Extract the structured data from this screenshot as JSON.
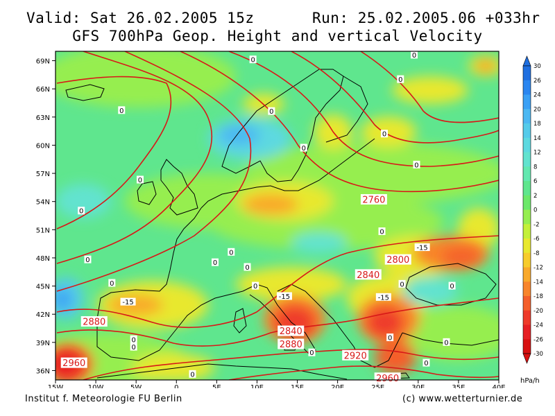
{
  "header": {
    "valid": "Valid: Sat 26.02.2005 15z",
    "run": "Run: 25.02.2005.06 +033hr",
    "title": "GFS 700hPa Geop. Height and vertical Velocity"
  },
  "footer": {
    "left": "Institut f. Meteorologie  FU Berlin",
    "right": "(c) www.wetterturnier.de"
  },
  "map": {
    "lat_labels": [
      "69N",
      "66N",
      "63N",
      "60N",
      "57N",
      "54N",
      "51N",
      "48N",
      "45N",
      "42N",
      "39N",
      "36N"
    ],
    "lon_labels": [
      "15W",
      "10W",
      "5W",
      "0",
      "5E",
      "10E",
      "15E",
      "20E",
      "25E",
      "30E",
      "35E",
      "40E"
    ],
    "lat_range": [
      35,
      70
    ],
    "lon_range": [
      -15,
      40
    ],
    "height_contour_labels": [
      {
        "text": "2760",
        "lon": 24.5,
        "lat": 54.2
      },
      {
        "text": "2800",
        "lon": 27.5,
        "lat": 47.8
      },
      {
        "text": "2840",
        "lon": 23.8,
        "lat": 46.2
      },
      {
        "text": "2880",
        "lon": -10.2,
        "lat": 41.2
      },
      {
        "text": "2840",
        "lon": 14.2,
        "lat": 40.2
      },
      {
        "text": "2880",
        "lon": 14.2,
        "lat": 38.8
      },
      {
        "text": "2920",
        "lon": 22.2,
        "lat": 37.6
      },
      {
        "text": "2960",
        "lon": -12.7,
        "lat": 36.8
      },
      {
        "text": "2960",
        "lon": 26.2,
        "lat": 35.2
      }
    ],
    "omega_labels": [
      {
        "text": "0",
        "lon": 9.5,
        "lat": 69.1
      },
      {
        "text": "0",
        "lon": 29.5,
        "lat": 69.6
      },
      {
        "text": "0",
        "lon": 27.8,
        "lat": 67.0
      },
      {
        "text": "0",
        "lon": 11.8,
        "lat": 63.6
      },
      {
        "text": "0",
        "lon": -6.8,
        "lat": 63.7
      },
      {
        "text": "0",
        "lon": 25.8,
        "lat": 61.2
      },
      {
        "text": "0",
        "lon": 15.8,
        "lat": 59.7
      },
      {
        "text": "0",
        "lon": 29.8,
        "lat": 57.9
      },
      {
        "text": "0",
        "lon": -4.5,
        "lat": 56.3
      },
      {
        "text": "0",
        "lon": -11.8,
        "lat": 53.0
      },
      {
        "text": "0",
        "lon": 25.5,
        "lat": 50.8
      },
      {
        "text": "0",
        "lon": 6.8,
        "lat": 48.6
      },
      {
        "text": "0",
        "lon": -11.0,
        "lat": 47.8
      },
      {
        "text": "0",
        "lon": 4.8,
        "lat": 47.5
      },
      {
        "text": "0",
        "lon": 8.8,
        "lat": 47.0
      },
      {
        "text": "0",
        "lon": -8.0,
        "lat": 45.3
      },
      {
        "text": "0",
        "lon": 9.8,
        "lat": 45.0
      },
      {
        "text": "0",
        "lon": 28.0,
        "lat": 45.2
      },
      {
        "text": "0",
        "lon": 34.2,
        "lat": 45.0
      },
      {
        "text": "0",
        "lon": -5.3,
        "lat": 39.3
      },
      {
        "text": "0",
        "lon": -5.3,
        "lat": 38.5
      },
      {
        "text": "0",
        "lon": 26.5,
        "lat": 39.5
      },
      {
        "text": "0",
        "lon": 33.5,
        "lat": 39.0
      },
      {
        "text": "0",
        "lon": 16.8,
        "lat": 37.9
      },
      {
        "text": "0",
        "lon": 31.0,
        "lat": 36.8
      },
      {
        "text": "0",
        "lon": 2.0,
        "lat": 35.6
      },
      {
        "text": "-15",
        "lon": -6.0,
        "lat": 43.3
      },
      {
        "text": "-15",
        "lon": 13.4,
        "lat": 43.9
      },
      {
        "text": "-15",
        "lon": 25.7,
        "lat": 43.8
      },
      {
        "text": "-15",
        "lon": 30.5,
        "lat": 49.1
      }
    ]
  },
  "colorbar": {
    "unit": "hPa/h",
    "levels": [
      "30",
      "26",
      "22",
      "18",
      "14",
      "10",
      "6",
      "2",
      "-2",
      "-6",
      "-10",
      "-14",
      "-18",
      "-22",
      "-26",
      "-30"
    ],
    "tick_labels": [
      "30",
      "26",
      "24",
      "20",
      "18",
      "14",
      "12",
      "8",
      "6",
      "2",
      "0",
      "-2",
      "-6",
      "-8",
      "-12",
      "-14",
      "-18",
      "-20",
      "-24",
      "-26",
      "-30"
    ],
    "colors": [
      "#1f6fe0",
      "#2a86f0",
      "#3aa0f5",
      "#4cb8f2",
      "#55cbea",
      "#5dd9e0",
      "#62e3cf",
      "#63e8b0",
      "#5fe68e",
      "#6ce86a",
      "#96ee50",
      "#c4f039",
      "#e8e82f",
      "#f7cc2c",
      "#f9a92b",
      "#f8852b",
      "#f45f2b",
      "#ee3a2a",
      "#e61f24",
      "#d81010"
    ]
  }
}
